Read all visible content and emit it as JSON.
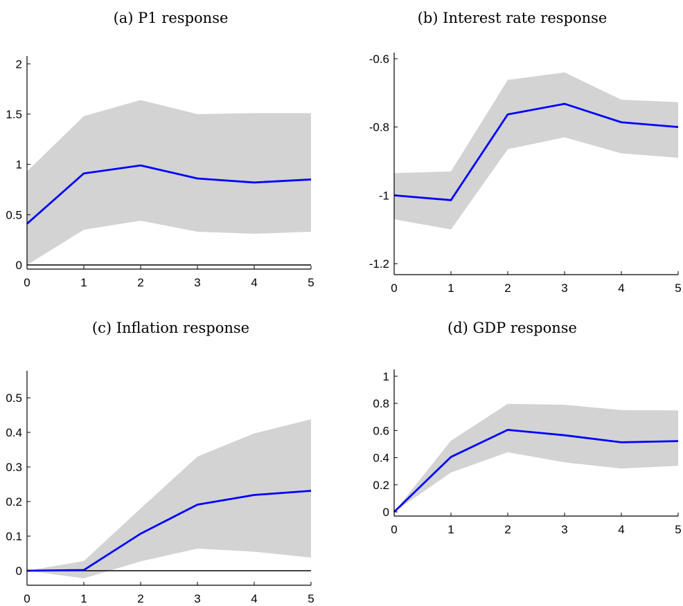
{
  "chart_data": [
    {
      "type": "line",
      "title": "(a) P1 response",
      "x": [
        0,
        1,
        2,
        3,
        4,
        5
      ],
      "series": [
        {
          "values": [
            0.41,
            0.91,
            0.99,
            0.86,
            0.82,
            0.85
          ],
          "color": "#0000ff"
        }
      ],
      "band": {
        "lower": [
          0.0,
          0.35,
          0.44,
          0.33,
          0.31,
          0.33
        ],
        "upper": [
          0.93,
          1.48,
          1.64,
          1.5,
          1.51,
          1.51
        ],
        "color": "#d3d3d3"
      },
      "xlim": [
        0,
        5
      ],
      "ylim": [
        0,
        2.05
      ],
      "yticks": [
        0,
        0.5,
        1,
        1.5,
        2
      ],
      "ytick_labels": [
        "0",
        "0.5",
        "1",
        "1.5",
        "2"
      ],
      "xticks": [
        0,
        1,
        2,
        3,
        4,
        5
      ],
      "xtick_labels": [
        "0",
        "1",
        "2",
        "3",
        "4",
        "5"
      ],
      "zero_line": true,
      "grid": false
    },
    {
      "type": "line",
      "title": "(b) Interest rate response",
      "x": [
        0,
        1,
        2,
        3,
        4,
        5
      ],
      "series": [
        {
          "values": [
            -1.0,
            -1.014,
            -0.763,
            -0.732,
            -0.786,
            -0.8
          ],
          "color": "#0000ff"
        }
      ],
      "band": {
        "lower": [
          -1.07,
          -1.1,
          -0.865,
          -0.83,
          -0.877,
          -0.89
        ],
        "upper": [
          -0.935,
          -0.93,
          -0.662,
          -0.64,
          -0.72,
          -0.727
        ],
        "color": "#d3d3d3"
      },
      "xlim": [
        0,
        5
      ],
      "ylim": [
        -1.22,
        -0.59
      ],
      "yticks": [
        -1.2,
        -1,
        -0.8,
        -0.6
      ],
      "ytick_labels": [
        "-1.2",
        "-1",
        "-0.8",
        "-0.6"
      ],
      "xticks": [
        0,
        1,
        2,
        3,
        4,
        5
      ],
      "xtick_labels": [
        "0",
        "1",
        "2",
        "3",
        "4",
        "5"
      ],
      "zero_line": false,
      "grid": false
    },
    {
      "type": "line",
      "title": "(c) Inflation response",
      "x": [
        0,
        1,
        2,
        3,
        4,
        5
      ],
      "series": [
        {
          "values": [
            0.0,
            0.002,
            0.107,
            0.191,
            0.219,
            0.231
          ],
          "color": "#0000ff"
        }
      ],
      "band": {
        "lower": [
          0.0,
          -0.022,
          0.027,
          0.064,
          0.055,
          0.038
        ],
        "upper": [
          0.0,
          0.028,
          0.18,
          0.33,
          0.397,
          0.438
        ],
        "color": "#d3d3d3"
      },
      "xlim": [
        0,
        5
      ],
      "ylim": [
        -0.03,
        0.57
      ],
      "yticks": [
        0,
        0.1,
        0.2,
        0.3,
        0.4,
        0.5
      ],
      "ytick_labels": [
        "0",
        "0.1",
        "0.2",
        "0.3",
        "0.4",
        "0.5"
      ],
      "xticks": [
        0,
        1,
        2,
        3,
        4,
        5
      ],
      "xtick_labels": [
        "0",
        "1",
        "2",
        "3",
        "4",
        "5"
      ],
      "zero_line": true,
      "grid": false
    },
    {
      "type": "line",
      "title": "(d) GDP response",
      "x": [
        0,
        1,
        2,
        3,
        4,
        5
      ],
      "series": [
        {
          "values": [
            0.0,
            0.405,
            0.605,
            0.565,
            0.513,
            0.522
          ],
          "color": "#0000ff"
        }
      ],
      "band": {
        "lower": [
          0.0,
          0.29,
          0.44,
          0.365,
          0.32,
          0.34
        ],
        "upper": [
          0.0,
          0.525,
          0.797,
          0.79,
          0.751,
          0.748
        ],
        "color": "#d3d3d3"
      },
      "xlim": [
        0,
        5
      ],
      "ylim": [
        0,
        1.03
      ],
      "yticks": [
        0,
        0.2,
        0.4,
        0.6,
        0.8,
        1
      ],
      "ytick_labels": [
        "0",
        "0.2",
        "0.4",
        "0.6",
        "0.8",
        "1"
      ],
      "xticks": [
        0,
        1,
        2,
        3,
        4,
        5
      ],
      "xtick_labels": [
        "0",
        "1",
        "2",
        "3",
        "4",
        "5"
      ],
      "zero_line": false,
      "grid": false
    }
  ]
}
